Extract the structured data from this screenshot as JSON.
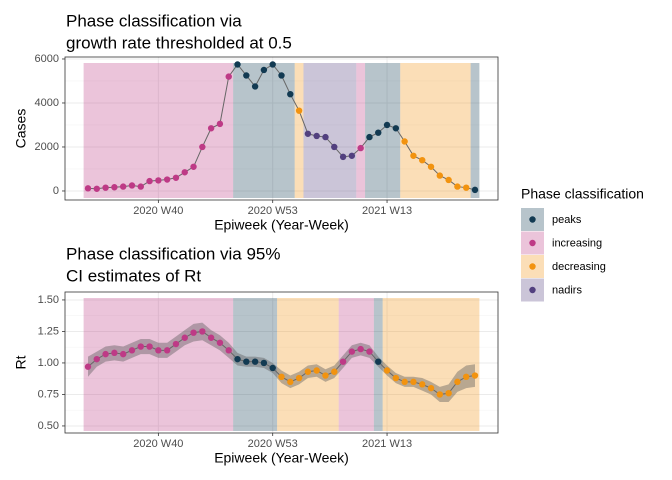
{
  "chart_data": [
    {
      "type": "line",
      "title": [
        "Phase classification via",
        "growth rate thresholded at 0.5"
      ],
      "xlabel": "Epiweek (Year-Week)",
      "ylabel": "Cases",
      "legend_title": "Phase classification",
      "legend": "right",
      "grid": true,
      "categories": [
        null,
        null,
        null,
        null,
        null,
        null,
        null,
        null,
        "2020 W40",
        null,
        null,
        null,
        null,
        null,
        null,
        null,
        null,
        null,
        null,
        null,
        null,
        "2020 W53",
        null,
        null,
        null,
        null,
        null,
        null,
        null,
        null,
        null,
        null,
        null,
        null,
        "2021 W13",
        null,
        null,
        null,
        null,
        null,
        null,
        null,
        null,
        null,
        null
      ],
      "ylim": [
        -410,
        6090
      ],
      "yticks": [
        0,
        2000,
        4000,
        6000
      ],
      "series": [
        {
          "name": "peaks",
          "color": "#123a52",
          "values": [
            null,
            null,
            null,
            null,
            null,
            null,
            null,
            null,
            null,
            null,
            null,
            null,
            null,
            null,
            null,
            null,
            null,
            5750,
            5250,
            4750,
            5500,
            5750,
            5250,
            4400,
            null,
            null,
            null,
            null,
            null,
            null,
            null,
            null,
            2450,
            2650,
            3000,
            2850,
            null,
            null,
            null,
            null,
            null,
            null,
            null,
            null,
            50
          ]
        },
        {
          "name": "increasing",
          "color": "#be3a86",
          "values": [
            120,
            100,
            150,
            170,
            200,
            250,
            200,
            450,
            480,
            520,
            600,
            850,
            1100,
            2000,
            2850,
            3050,
            5200,
            null,
            null,
            null,
            null,
            null,
            null,
            null,
            null,
            null,
            null,
            null,
            null,
            null,
            null,
            1950,
            null,
            null,
            null,
            null,
            null,
            null,
            null,
            null,
            null,
            null,
            null,
            null,
            null
          ]
        },
        {
          "name": "decreasing",
          "color": "#f2930f",
          "values": [
            null,
            null,
            null,
            null,
            null,
            null,
            null,
            null,
            null,
            null,
            null,
            null,
            null,
            null,
            null,
            null,
            null,
            null,
            null,
            null,
            null,
            null,
            null,
            null,
            3650,
            null,
            null,
            null,
            null,
            null,
            null,
            null,
            null,
            null,
            null,
            null,
            2250,
            1600,
            1400,
            1100,
            700,
            500,
            200,
            150,
            null
          ]
        },
        {
          "name": "nadirs",
          "color": "#52407f",
          "values": [
            null,
            null,
            null,
            null,
            null,
            null,
            null,
            null,
            null,
            null,
            null,
            null,
            null,
            null,
            null,
            null,
            null,
            null,
            null,
            null,
            null,
            null,
            null,
            null,
            null,
            2600,
            2500,
            2450,
            2000,
            1550,
            1600,
            null,
            null,
            null,
            null,
            null,
            null,
            null,
            null,
            null,
            null,
            null,
            null,
            null,
            null
          ]
        }
      ]
    },
    {
      "type": "line",
      "title": [
        "Phase classification via 95%",
        "CI estimates of Rt"
      ],
      "xlabel": "Epiweek (Year-Week)",
      "ylabel": "Rt",
      "grid": true,
      "categories": [
        null,
        null,
        null,
        null,
        null,
        null,
        null,
        null,
        "2020 W40",
        null,
        null,
        null,
        null,
        null,
        null,
        null,
        null,
        null,
        null,
        null,
        null,
        "2020 W53",
        null,
        null,
        null,
        null,
        null,
        null,
        null,
        null,
        null,
        null,
        null,
        null,
        "2021 W13",
        null,
        null,
        null,
        null,
        null,
        null,
        null,
        null,
        null,
        null
      ],
      "ylim": [
        0.444,
        1.563
      ],
      "yticks": [
        {
          "value": 0.5,
          "label": "0.50"
        },
        {
          "value": 0.75,
          "label": "0.75"
        },
        {
          "value": 1,
          "label": "1.00"
        },
        {
          "value": 1.25,
          "label": "1.25"
        },
        {
          "value": 1.5,
          "label": "1.50"
        }
      ],
      "ci_color": "#555555",
      "ci_lower": [
        0.89,
        0.97,
        1.01,
        1.02,
        1.01,
        1.04,
        1.07,
        1.07,
        1.04,
        1.04,
        1.09,
        1.14,
        1.17,
        1.18,
        1.14,
        1.1,
        1.04,
        0.98,
        0.97,
        0.97,
        0.96,
        0.92,
        0.84,
        0.8,
        0.83,
        0.88,
        0.89,
        0.85,
        0.88,
        0.96,
        1.04,
        1.06,
        1.04,
        0.97,
        0.9,
        0.84,
        0.81,
        0.81,
        0.78,
        0.75,
        0.69,
        0.69,
        0.77,
        0.8,
        0.81
      ],
      "ci_upper": [
        1.05,
        1.09,
        1.13,
        1.14,
        1.13,
        1.16,
        1.19,
        1.19,
        1.16,
        1.16,
        1.21,
        1.26,
        1.31,
        1.32,
        1.26,
        1.22,
        1.16,
        1.08,
        1.05,
        1.05,
        1.04,
        1.0,
        0.94,
        0.9,
        0.93,
        0.98,
        0.99,
        0.95,
        0.98,
        1.06,
        1.14,
        1.16,
        1.14,
        1.05,
        0.98,
        0.92,
        0.89,
        0.89,
        0.88,
        0.85,
        0.81,
        0.83,
        0.93,
        0.98,
        0.99
      ],
      "series": [
        {
          "color": "#123a52",
          "values": [
            null,
            null,
            null,
            null,
            null,
            null,
            null,
            null,
            null,
            null,
            null,
            null,
            null,
            null,
            null,
            null,
            null,
            1.03,
            1.01,
            1.01,
            1.0,
            0.96,
            null,
            null,
            null,
            null,
            null,
            null,
            null,
            null,
            null,
            null,
            null,
            1.01,
            null,
            null,
            null,
            null,
            null,
            null,
            null,
            null,
            null,
            null,
            null
          ]
        },
        {
          "color": "#be3a86",
          "values": [
            0.97,
            1.03,
            1.07,
            1.08,
            1.07,
            1.1,
            1.13,
            1.13,
            1.1,
            1.1,
            1.15,
            1.2,
            1.24,
            1.25,
            1.2,
            1.16,
            1.1,
            null,
            null,
            null,
            null,
            null,
            null,
            null,
            null,
            null,
            null,
            null,
            null,
            1.01,
            1.09,
            1.11,
            1.09,
            null,
            null,
            null,
            null,
            null,
            null,
            null,
            null,
            null,
            null,
            null,
            null
          ]
        },
        {
          "color": "#f2930f",
          "values": [
            null,
            null,
            null,
            null,
            null,
            null,
            null,
            null,
            null,
            null,
            null,
            null,
            null,
            null,
            null,
            null,
            null,
            null,
            null,
            null,
            null,
            null,
            0.89,
            0.85,
            0.88,
            0.93,
            0.94,
            0.9,
            0.93,
            null,
            null,
            null,
            null,
            null,
            0.94,
            0.88,
            0.85,
            0.85,
            0.83,
            0.8,
            0.75,
            0.76,
            0.85,
            0.89,
            0.9
          ]
        }
      ]
    }
  ]
}
